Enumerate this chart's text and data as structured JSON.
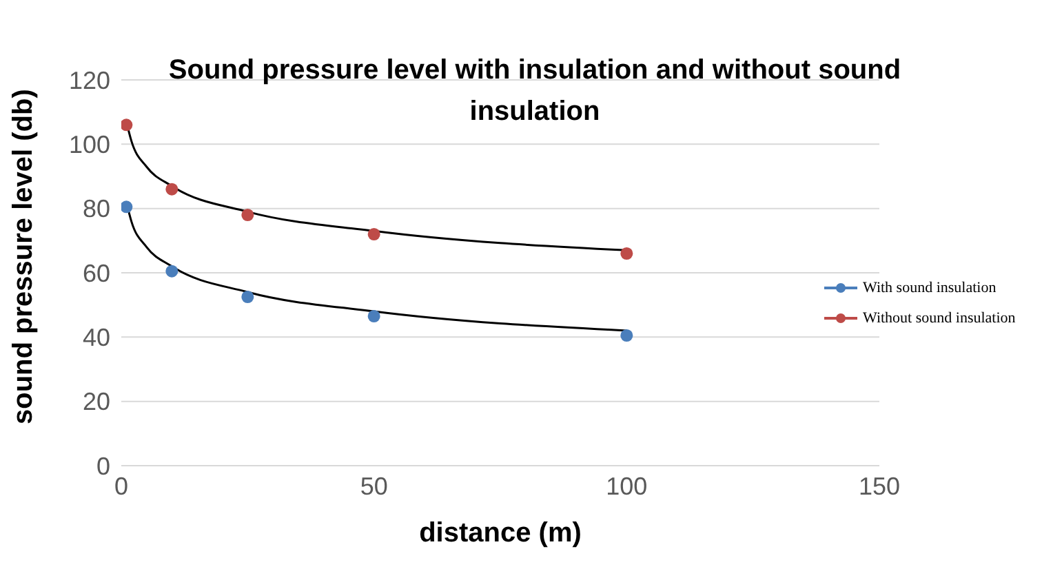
{
  "chart_data": {
    "type": "scatter",
    "title": "Sound pressure level with insulation and without sound insulation",
    "xlabel": "distance (m)",
    "ylabel": "sound pressure level (db)",
    "xlim": [
      0,
      150
    ],
    "xticks": [
      0,
      50,
      100,
      150
    ],
    "ylim": [
      0,
      120
    ],
    "yticks": [
      0,
      20,
      40,
      60,
      80,
      100,
      120
    ],
    "grid": "y",
    "legend": "right",
    "marker": "circle",
    "x": [
      1,
      10,
      25,
      50,
      100
    ],
    "series": [
      {
        "name": "With sound insulation",
        "color": "#4a7ebb",
        "values": [
          80.5,
          60.5,
          52.5,
          46.5,
          40.5
        ]
      },
      {
        "name": "Without sound insulation",
        "color": "#be4b48",
        "values": [
          106,
          86,
          78,
          72,
          66
        ]
      },
      {
        "type": "line",
        "marker": "none",
        "color": "#000000",
        "x": [
          1,
          2,
          5,
          10,
          25,
          50,
          100
        ],
        "values": [
          82,
          76,
          68,
          62,
          54,
          48,
          42
        ]
      },
      {
        "type": "line",
        "marker": "none",
        "color": "#000000",
        "x": [
          1,
          2,
          5,
          10,
          25,
          50,
          100
        ],
        "values": [
          107,
          101,
          93,
          87,
          79,
          73,
          67
        ]
      }
    ]
  }
}
